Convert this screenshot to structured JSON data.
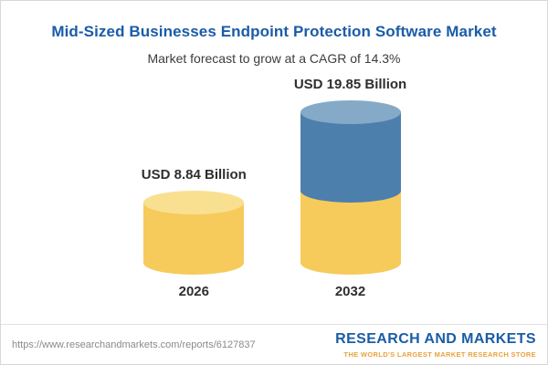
{
  "header": {
    "title": "Mid-Sized Businesses Endpoint Protection Software Market",
    "subtitle": "Market forecast to grow at a CAGR of 14.3%"
  },
  "chart_data": {
    "type": "bar",
    "subtype": "3d-cylinder",
    "categories": [
      "2026",
      "2032"
    ],
    "values": [
      8.84,
      19.85
    ],
    "value_labels": [
      "USD 8.84 Billion",
      "USD 19.85 Billion"
    ],
    "unit": "USD Billion",
    "cagr_percent": 14.3,
    "title": "Mid-Sized Businesses Endpoint Protection Software Market",
    "subtitle": "Market forecast to grow at a CAGR of 14.3%",
    "stacking": "2032 cylinder shows gold base equal to 2026 value with blue growth segment on top",
    "legend": false,
    "axes": false,
    "colors": {
      "base": "#F6CB5C",
      "base_light": "#F9E091",
      "growth": "#4D7FAC",
      "growth_light": "#84AAC8",
      "title_blue": "#1A5CA8",
      "tagline_gold": "#E9A13B"
    }
  },
  "footer": {
    "url": "https://www.researchandmarkets.com/reports/6127837",
    "brand": "RESEARCH AND MARKETS",
    "tagline": "THE WORLD'S LARGEST MARKET RESEARCH STORE"
  }
}
